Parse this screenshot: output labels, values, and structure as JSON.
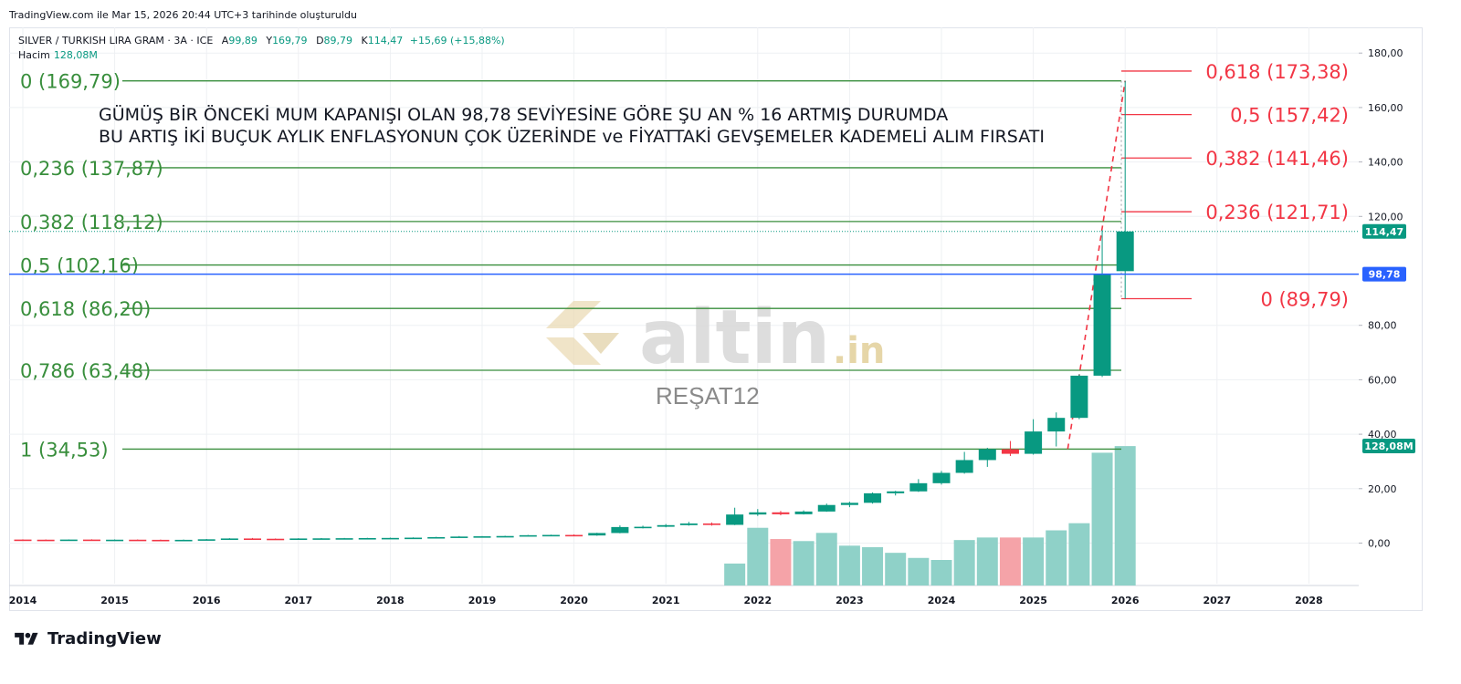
{
  "header": {
    "caption": "TradingView.com ile Mar 15, 2026 20:44 UTC+3 tarihinde oluşturuldu"
  },
  "legend": {
    "symbol": "SILVER / TURKISH LIRA GRAM · 3A · ICE",
    "open_label": "A",
    "open_value": "99,89",
    "high_label": "Y",
    "high_value": "169,79",
    "low_label": "D",
    "low_value": "89,79",
    "close_label": "K",
    "close_value": "114,47",
    "change": "+15,69 (+15,88%)",
    "volume_label": "Hacim",
    "volume_value": "128,08M"
  },
  "annotation": {
    "line1": "GÜMÜŞ BİR ÖNCEKİ MUM KAPANIŞI OLAN 98,78 SEVİYESİNE GÖRE ŞU AN % 16 ARTMIŞ DURUMDA",
    "line2": "BU ARTIŞ İKİ BUÇUK AYLIK ENFLASYONUN ÇOK ÜZERİNDE ve FİYATTAKİ GEVŞEMELER KADEMELİ ALIM FIRSATI"
  },
  "watermark": {
    "brand": "altin",
    "brand_suffix": ".in",
    "author": "REŞAT12"
  },
  "footer": {
    "brand": "TradingView"
  },
  "colors": {
    "up": "#089981",
    "down": "#f23645",
    "vol_up": "#8fd1c8",
    "vol_down": "#f5a3a8",
    "fib_left": "#388e3c",
    "fib_right": "#f23645",
    "price_line": "#2962ff",
    "grid": "#eef0f3"
  },
  "chart_data": {
    "type": "candlestick",
    "ylim": [
      -8,
      182
    ],
    "y_ticks": [
      {
        "value": 0,
        "label": "0,00"
      },
      {
        "value": 20,
        "label": "20,00"
      },
      {
        "value": 40,
        "label": "40,00"
      },
      {
        "value": 60,
        "label": "60,00"
      },
      {
        "value": 80,
        "label": "80,00"
      },
      {
        "value": 120,
        "label": "120,00"
      },
      {
        "value": 140,
        "label": "140,00"
      },
      {
        "value": 160,
        "label": "160,00"
      },
      {
        "value": 180,
        "label": "180,00"
      }
    ],
    "x_ticks": [
      "2014",
      "2015",
      "2016",
      "2017",
      "2018",
      "2019",
      "2020",
      "2021",
      "2022",
      "2023",
      "2024",
      "2025",
      "2026",
      "2027",
      "2028"
    ],
    "x_range": [
      2014,
      2028.9
    ],
    "candles": [
      {
        "t": 2014.0,
        "o": 1.3,
        "h": 1.4,
        "l": 1.2,
        "c": 1.25
      },
      {
        "t": 2014.25,
        "o": 1.25,
        "h": 1.35,
        "l": 1.15,
        "c": 1.2
      },
      {
        "t": 2014.5,
        "o": 1.2,
        "h": 1.35,
        "l": 1.15,
        "c": 1.3
      },
      {
        "t": 2014.75,
        "o": 1.3,
        "h": 1.4,
        "l": 1.15,
        "c": 1.2
      },
      {
        "t": 2015.0,
        "o": 1.2,
        "h": 1.35,
        "l": 1.1,
        "c": 1.25
      },
      {
        "t": 2015.25,
        "o": 1.25,
        "h": 1.35,
        "l": 1.15,
        "c": 1.2
      },
      {
        "t": 2015.5,
        "o": 1.2,
        "h": 1.3,
        "l": 1.1,
        "c": 1.15
      },
      {
        "t": 2015.75,
        "o": 1.15,
        "h": 1.3,
        "l": 1.1,
        "c": 1.2
      },
      {
        "t": 2016.0,
        "o": 1.2,
        "h": 1.5,
        "l": 1.15,
        "c": 1.4
      },
      {
        "t": 2016.25,
        "o": 1.4,
        "h": 1.8,
        "l": 1.35,
        "c": 1.7
      },
      {
        "t": 2016.5,
        "o": 1.7,
        "h": 1.9,
        "l": 1.5,
        "c": 1.6
      },
      {
        "t": 2016.75,
        "o": 1.6,
        "h": 1.7,
        "l": 1.45,
        "c": 1.55
      },
      {
        "t": 2017.0,
        "o": 1.55,
        "h": 1.8,
        "l": 1.5,
        "c": 1.7
      },
      {
        "t": 2017.25,
        "o": 1.7,
        "h": 1.85,
        "l": 1.6,
        "c": 1.75
      },
      {
        "t": 2017.5,
        "o": 1.75,
        "h": 1.9,
        "l": 1.65,
        "c": 1.8
      },
      {
        "t": 2017.75,
        "o": 1.8,
        "h": 1.95,
        "l": 1.7,
        "c": 1.85
      },
      {
        "t": 2018.0,
        "o": 1.85,
        "h": 2.0,
        "l": 1.75,
        "c": 1.9
      },
      {
        "t": 2018.25,
        "o": 1.9,
        "h": 2.1,
        "l": 1.8,
        "c": 2.0
      },
      {
        "t": 2018.5,
        "o": 2.0,
        "h": 2.3,
        "l": 1.9,
        "c": 2.2
      },
      {
        "t": 2018.75,
        "o": 2.2,
        "h": 2.6,
        "l": 2.1,
        "c": 2.4
      },
      {
        "t": 2019.0,
        "o": 2.4,
        "h": 2.6,
        "l": 2.3,
        "c": 2.5
      },
      {
        "t": 2019.25,
        "o": 2.5,
        "h": 2.7,
        "l": 2.4,
        "c": 2.6
      },
      {
        "t": 2019.5,
        "o": 2.6,
        "h": 3.0,
        "l": 2.5,
        "c": 2.9
      },
      {
        "t": 2019.75,
        "o": 2.9,
        "h": 3.1,
        "l": 2.8,
        "c": 3.0
      },
      {
        "t": 2020.0,
        "o": 3.0,
        "h": 3.2,
        "l": 2.7,
        "c": 2.8
      },
      {
        "t": 2020.25,
        "o": 2.8,
        "h": 3.8,
        "l": 2.7,
        "c": 3.7
      },
      {
        "t": 2020.5,
        "o": 3.7,
        "h": 6.5,
        "l": 3.6,
        "c": 5.9
      },
      {
        "t": 2020.75,
        "o": 5.9,
        "h": 6.4,
        "l": 5.4,
        "c": 6.0
      },
      {
        "t": 2021.0,
        "o": 6.0,
        "h": 7.0,
        "l": 5.8,
        "c": 6.6
      },
      {
        "t": 2021.25,
        "o": 6.6,
        "h": 7.8,
        "l": 6.4,
        "c": 7.2
      },
      {
        "t": 2021.5,
        "o": 7.2,
        "h": 7.6,
        "l": 6.4,
        "c": 6.7
      },
      {
        "t": 2021.75,
        "o": 6.7,
        "h": 13.0,
        "l": 6.6,
        "c": 10.5
      },
      {
        "t": 2022.0,
        "o": 10.5,
        "h": 12.5,
        "l": 10.0,
        "c": 11.3
      },
      {
        "t": 2022.25,
        "o": 11.3,
        "h": 11.8,
        "l": 10.2,
        "c": 10.6
      },
      {
        "t": 2022.5,
        "o": 10.6,
        "h": 12.0,
        "l": 10.5,
        "c": 11.6
      },
      {
        "t": 2022.75,
        "o": 11.6,
        "h": 14.5,
        "l": 11.5,
        "c": 14.0
      },
      {
        "t": 2023.0,
        "o": 14.0,
        "h": 15.2,
        "l": 13.2,
        "c": 14.8
      },
      {
        "t": 2023.25,
        "o": 14.8,
        "h": 18.6,
        "l": 14.5,
        "c": 18.3
      },
      {
        "t": 2023.5,
        "o": 18.3,
        "h": 19.2,
        "l": 17.5,
        "c": 19.0
      },
      {
        "t": 2023.75,
        "o": 19.0,
        "h": 23.5,
        "l": 18.8,
        "c": 22.0
      },
      {
        "t": 2024.0,
        "o": 22.0,
        "h": 26.5,
        "l": 21.5,
        "c": 25.8
      },
      {
        "t": 2024.25,
        "o": 25.8,
        "h": 33.5,
        "l": 25.5,
        "c": 30.5
      },
      {
        "t": 2024.5,
        "o": 30.5,
        "h": 35.0,
        "l": 28.0,
        "c": 34.5
      },
      {
        "t": 2024.75,
        "o": 34.5,
        "h": 37.5,
        "l": 32.0,
        "c": 32.8
      },
      {
        "t": 2025.0,
        "o": 32.8,
        "h": 45.5,
        "l": 32.5,
        "c": 41.0
      },
      {
        "t": 2025.25,
        "o": 41.0,
        "h": 48.0,
        "l": 35.5,
        "c": 46.0
      },
      {
        "t": 2025.5,
        "o": 46.0,
        "h": 62.0,
        "l": 45.5,
        "c": 61.5
      },
      {
        "t": 2025.75,
        "o": 61.5,
        "h": 115.0,
        "l": 61.0,
        "c": 98.78
      },
      {
        "t": 2026.0,
        "o": 99.89,
        "h": 169.79,
        "l": 89.79,
        "c": 114.47
      }
    ],
    "volume_scale_max": 300,
    "volumes": [
      {
        "t": 2021.75,
        "v": 43,
        "up": true
      },
      {
        "t": 2022.0,
        "v": 113,
        "up": true
      },
      {
        "t": 2022.25,
        "v": 91,
        "up": false
      },
      {
        "t": 2022.5,
        "v": 87,
        "up": true
      },
      {
        "t": 2022.75,
        "v": 103,
        "up": true
      },
      {
        "t": 2023.0,
        "v": 78,
        "up": true
      },
      {
        "t": 2023.25,
        "v": 75,
        "up": true
      },
      {
        "t": 2023.5,
        "v": 64,
        "up": true
      },
      {
        "t": 2023.75,
        "v": 54,
        "up": true
      },
      {
        "t": 2024.0,
        "v": 50,
        "up": true
      },
      {
        "t": 2024.25,
        "v": 89,
        "up": true
      },
      {
        "t": 2024.5,
        "v": 94,
        "up": true
      },
      {
        "t": 2024.75,
        "v": 94,
        "up": false
      },
      {
        "t": 2025.0,
        "v": 94,
        "up": true
      },
      {
        "t": 2025.25,
        "v": 108,
        "up": true
      },
      {
        "t": 2025.5,
        "v": 122,
        "up": true
      },
      {
        "t": 2025.75,
        "v": 260,
        "up": true
      },
      {
        "t": 2026.0,
        "v": 273,
        "up": true
      }
    ],
    "fib_retracement": [
      {
        "ratio": "0",
        "value": 169.79,
        "label": "0 (169,79)"
      },
      {
        "ratio": "0,236",
        "value": 137.87,
        "label": "0,236 (137,87)"
      },
      {
        "ratio": "0,382",
        "value": 118.12,
        "label": "0,382 (118,12)"
      },
      {
        "ratio": "0,5",
        "value": 102.16,
        "label": "0,5 (102,16)"
      },
      {
        "ratio": "0,618",
        "value": 86.2,
        "label": "0,618 (86,20)"
      },
      {
        "ratio": "0,786",
        "value": 63.48,
        "label": "0,786 (63,48)"
      },
      {
        "ratio": "1",
        "value": 34.53,
        "label": "1 (34,53)"
      }
    ],
    "fib_extension": [
      {
        "ratio": "0,618",
        "value": 173.38,
        "label": "0,618 (173,38)"
      },
      {
        "ratio": "0,5",
        "value": 157.42,
        "label": "0,5 (157,42)"
      },
      {
        "ratio": "0,382",
        "value": 141.46,
        "label": "0,382 (141,46)"
      },
      {
        "ratio": "0,236",
        "value": 121.71,
        "label": "0,236 (121,71)"
      },
      {
        "ratio": "0",
        "value": 89.79,
        "label": "0 (89,79)"
      }
    ],
    "trend_line": {
      "from": {
        "t": 2025.375,
        "y": 34.53
      },
      "to": {
        "t": 2026.0,
        "y": 169.79
      }
    },
    "price_lines": [
      {
        "value": 114.47,
        "label": "114,47",
        "style": "current"
      },
      {
        "value": 98.78,
        "label": "98,78",
        "style": "previous"
      }
    ],
    "volume_badge": "128,08M"
  }
}
